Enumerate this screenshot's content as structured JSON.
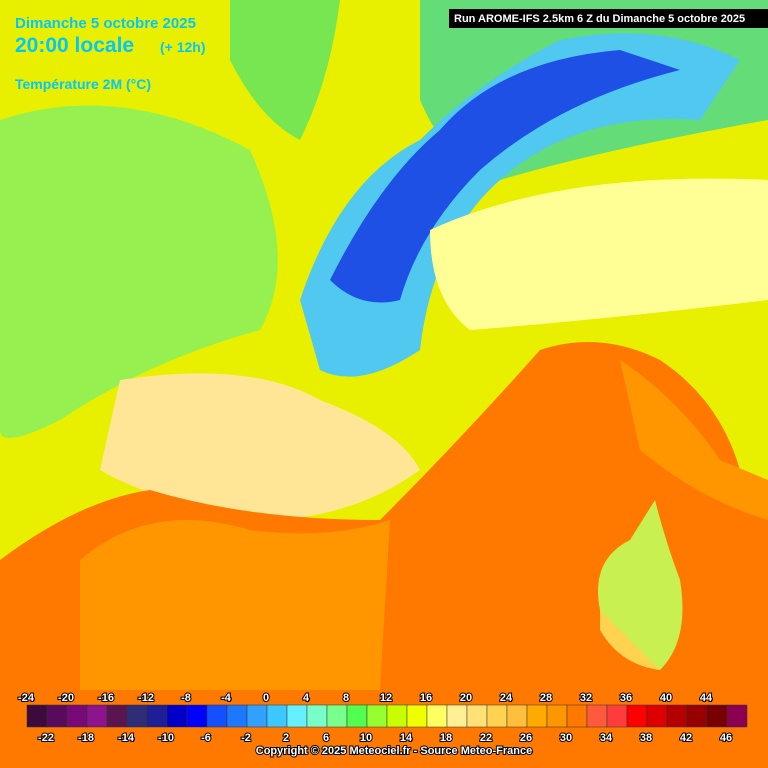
{
  "header": {
    "date": "Dimanche 5 octobre 2025",
    "time": "20:00 locale",
    "lead": "(+ 12h)",
    "variable": "Température 2M (°C)",
    "run": "Run AROME-IFS 2.5km 6 Z du Dimanche 5 octobre 2025"
  },
  "legend": {
    "colors": [
      "#3c0a3c",
      "#5a0a5a",
      "#780a78",
      "#8c148c",
      "#5a1450",
      "#2d2d78",
      "#1e1e96",
      "#0000c8",
      "#0000ff",
      "#1450ff",
      "#1e78ff",
      "#32a0ff",
      "#3cc8ff",
      "#64f0ff",
      "#78ffc8",
      "#78ff8c",
      "#50ff50",
      "#96ff32",
      "#c8ff00",
      "#f0ff00",
      "#ffff64",
      "#fff096",
      "#ffe178",
      "#ffd250",
      "#ffbe3c",
      "#ffaa00",
      "#ff9600",
      "#ff7800",
      "#ff5a3c",
      "#ff3c3c",
      "#ff0000",
      "#dc0000",
      "#b40000",
      "#960000",
      "#780000",
      "#8c0050"
    ],
    "top_labels": [
      -24,
      -20,
      -16,
      -12,
      -8,
      -4,
      0,
      4,
      8,
      12,
      16,
      20,
      24,
      28,
      32,
      36,
      40,
      44
    ],
    "bottom_labels": [
      -22,
      -18,
      -14,
      -10,
      -6,
      -2,
      2,
      6,
      10,
      14,
      18,
      22,
      26,
      30,
      34,
      38,
      42,
      46
    ]
  },
  "footer": "Copyright © 2025 Meteociel.fr - Source Meteo-France"
}
